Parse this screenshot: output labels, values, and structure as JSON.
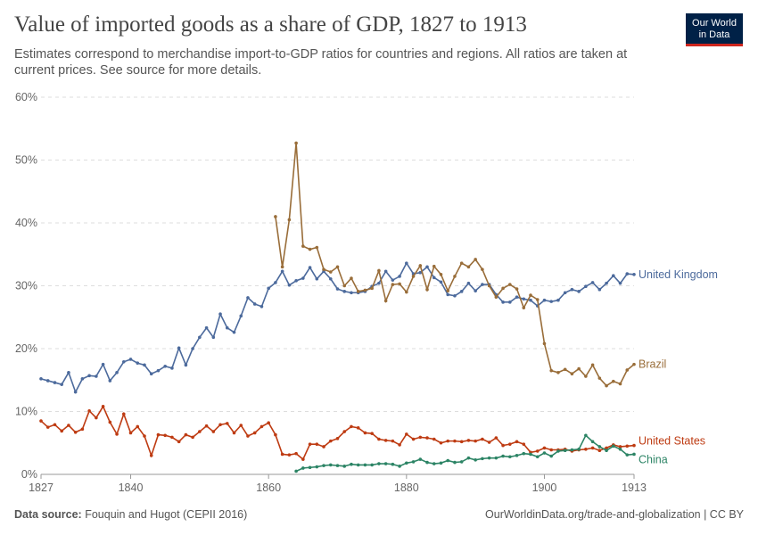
{
  "header": {
    "title": "Value of imported goods as a share of GDP, 1827 to 1913",
    "subtitle": "Estimates correspond to merchandise import-to-GDP ratios for countries and regions. All ratios are taken at current prices. See source for more details.",
    "logo": "Our World in Data"
  },
  "footer": {
    "source_label": "Data source:",
    "source": "Fouquin and Hugot (CEPII 2016)",
    "url": "OurWorldinData.org/trade-and-globalization | CC BY"
  },
  "chart_data": {
    "type": "line",
    "title": "Value of imported goods as a share of GDP, 1827 to 1913",
    "xlim": [
      1827,
      1913
    ],
    "ylim": [
      0,
      60
    ],
    "xticks": [
      "1827",
      "1840",
      "1860",
      "1880",
      "1900",
      "1913"
    ],
    "yticks": [
      "0%",
      "10%",
      "20%",
      "30%",
      "40%",
      "50%",
      "60%"
    ],
    "grid": "horizontal dashed",
    "legend": "line-end labels",
    "series": [
      {
        "name": "United Kingdom",
        "color": "#4c6a9c",
        "start": 1827,
        "values": [
          15.2,
          14.9,
          14.6,
          14.3,
          16.2,
          13.1,
          15.2,
          15.7,
          15.6,
          17.5,
          14.9,
          16.2,
          17.9,
          18.3,
          17.7,
          17.4,
          16.0,
          16.5,
          17.2,
          16.9,
          20.1,
          17.4,
          20.0,
          21.8,
          23.3,
          21.8,
          25.5,
          23.3,
          22.6,
          25.2,
          28.1,
          27.1,
          26.7,
          29.6,
          30.5,
          32.3,
          30.1,
          30.8,
          31.2,
          32.9,
          31.1,
          32.3,
          31.1,
          29.5,
          29.1,
          28.9,
          28.9,
          29.1,
          29.9,
          30.4,
          32.3,
          30.9,
          31.5,
          33.6,
          31.9,
          32.1,
          33.0,
          31.3,
          30.6,
          28.6,
          28.4,
          29.1,
          30.4,
          29.2,
          30.2,
          30.2,
          28.6,
          27.4,
          27.4,
          28.2,
          27.9,
          27.7,
          26.8,
          27.7,
          27.5,
          27.7,
          28.9,
          29.4,
          29.1,
          29.9,
          30.5,
          29.4,
          30.4,
          31.6,
          30.4,
          31.9,
          31.8
        ]
      },
      {
        "name": "Brazil",
        "color": "#996d39",
        "start": 1861,
        "values": [
          41.0,
          33.0,
          40.5,
          52.7,
          36.3,
          35.8,
          36.1,
          32.6,
          32.2,
          33.0,
          30.0,
          31.2,
          29.1,
          29.3,
          29.6,
          32.4,
          27.6,
          30.2,
          30.3,
          29.0,
          31.5,
          33.2,
          29.4,
          33.1,
          31.8,
          29.2,
          31.5,
          33.6,
          33.0,
          34.2,
          32.6,
          30.0,
          28.2,
          29.6,
          30.2,
          29.5,
          26.5,
          28.5,
          27.8,
          20.8,
          16.5,
          16.2,
          16.7,
          16.0,
          16.8,
          15.6,
          17.4,
          15.3,
          14.1,
          14.8,
          14.4,
          16.6,
          17.5
        ]
      },
      {
        "name": "United States",
        "color": "#be3b12",
        "start": 1827,
        "values": [
          8.5,
          7.5,
          7.9,
          6.9,
          7.8,
          6.7,
          7.2,
          10.1,
          9.0,
          10.8,
          8.3,
          6.4,
          9.6,
          6.6,
          7.6,
          6.1,
          3.0,
          6.3,
          6.2,
          5.9,
          5.2,
          6.3,
          5.9,
          6.8,
          7.7,
          6.8,
          7.9,
          8.1,
          6.6,
          7.8,
          6.1,
          6.6,
          7.6,
          8.2,
          6.3,
          3.2,
          3.1,
          3.3,
          2.4,
          4.8,
          4.8,
          4.4,
          5.3,
          5.7,
          6.8,
          7.6,
          7.4,
          6.6,
          6.5,
          5.6,
          5.4,
          5.3,
          4.7,
          6.4,
          5.6,
          5.9,
          5.8,
          5.6,
          5.0,
          5.3,
          5.3,
          5.2,
          5.4,
          5.3,
          5.6,
          5.1,
          5.8,
          4.6,
          4.8,
          5.2,
          4.8,
          3.5,
          3.7,
          4.2,
          3.9,
          3.9,
          4.0,
          3.7,
          3.9,
          4.0,
          4.2,
          3.8,
          4.2,
          4.7,
          4.4,
          4.5,
          4.6
        ]
      },
      {
        "name": "China",
        "color": "#2c8465",
        "start": 1864,
        "values": [
          0.5,
          1.0,
          1.1,
          1.2,
          1.4,
          1.5,
          1.4,
          1.3,
          1.6,
          1.5,
          1.5,
          1.5,
          1.7,
          1.7,
          1.6,
          1.3,
          1.8,
          2.0,
          2.4,
          1.9,
          1.7,
          1.8,
          2.2,
          1.9,
          2.0,
          2.6,
          2.3,
          2.5,
          2.6,
          2.6,
          2.9,
          2.8,
          3.0,
          3.3,
          3.2,
          2.8,
          3.4,
          2.9,
          3.7,
          3.8,
          3.9,
          4.0,
          6.2,
          5.2,
          4.4,
          3.8,
          4.5,
          4.0,
          3.1,
          3.2
        ]
      }
    ]
  }
}
